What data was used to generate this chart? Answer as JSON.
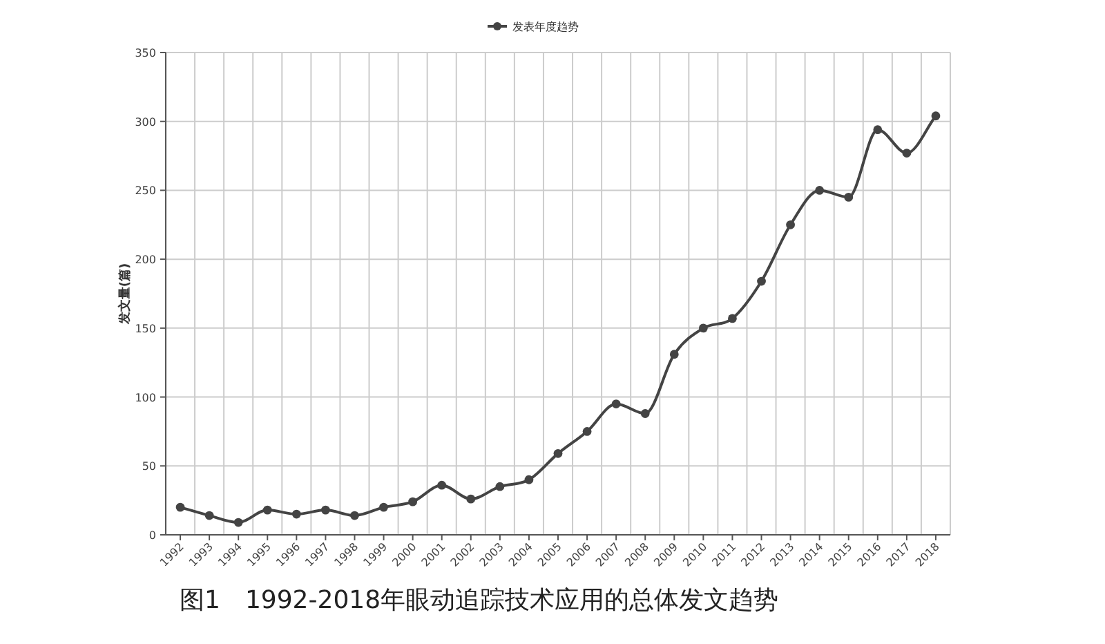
{
  "chart_data": {
    "type": "line",
    "ylabel": "发文量(篇)",
    "legend": "top",
    "annotations": [
      "图1　1992-2018年眼动追踪技术应用的总体发文趋势"
    ],
    "categories": [
      "1992",
      "1993",
      "1994",
      "1995",
      "1996",
      "1997",
      "1998",
      "1999",
      "2000",
      "2001",
      "2002",
      "2003",
      "2004",
      "2005",
      "2006",
      "2007",
      "2008",
      "2009",
      "2010",
      "2011",
      "2012",
      "2013",
      "2014",
      "2015",
      "2016",
      "2017",
      "2018"
    ],
    "series": [
      {
        "name": "发表年度趋势",
        "color": "#444444",
        "values": [
          20,
          14,
          9,
          18,
          15,
          18,
          14,
          20,
          24,
          36,
          26,
          35,
          40,
          59,
          75,
          95,
          88,
          131,
          150,
          157,
          184,
          225,
          250,
          245,
          294,
          277,
          304
        ]
      }
    ],
    "ylim": [
      0,
      350
    ],
    "yticks": [
      0,
      50,
      100,
      150,
      200,
      250,
      300,
      350
    ],
    "grid": true,
    "marker": "circle",
    "line_style": "solid"
  }
}
